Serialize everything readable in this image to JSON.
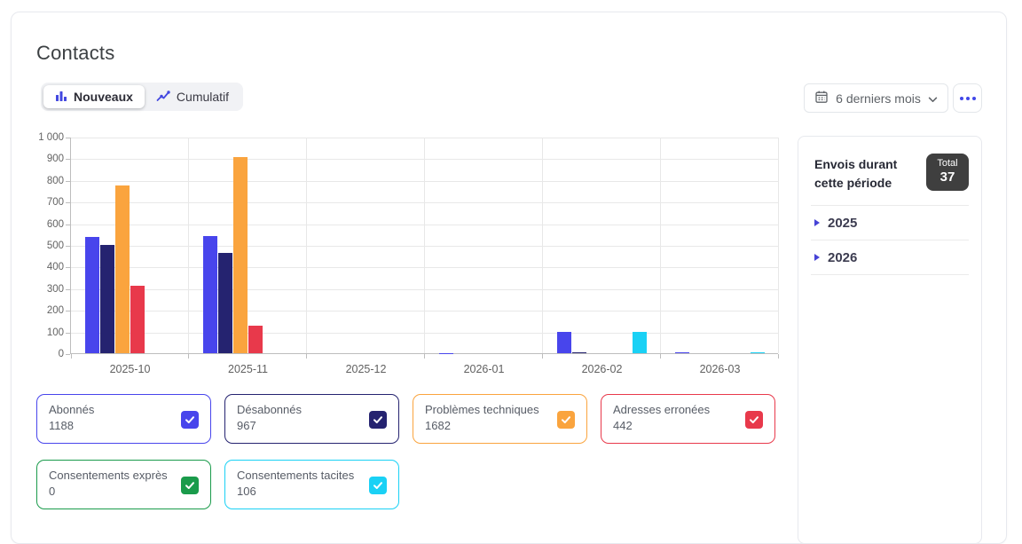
{
  "page": {
    "title": "Contacts"
  },
  "toolbar": {
    "views": [
      {
        "label": "Nouveaux",
        "icon": "bar-chart-icon",
        "active": true
      },
      {
        "label": "Cumulatif",
        "icon": "line-chart-icon",
        "active": false
      }
    ],
    "period": {
      "label": "6 derniers mois",
      "icon": "calendar-icon"
    },
    "more_icon": "ellipsis-icon"
  },
  "chart_data": {
    "type": "bar",
    "categories": [
      "2025-10",
      "2025-11",
      "2025-12",
      "2026-01",
      "2026-02",
      "2026-03"
    ],
    "series": [
      {
        "name": "Abonnés",
        "color": "#4845ec",
        "values": [
          537,
          543,
          0,
          2,
          100,
          6
        ],
        "total": "1188",
        "checked": true
      },
      {
        "name": "Désabonnés",
        "color": "#252370",
        "values": [
          501,
          462,
          0,
          0,
          4,
          0
        ],
        "total": "967",
        "checked": true
      },
      {
        "name": "Problèmes techniques",
        "color": "#faa43e",
        "values": [
          775,
          907,
          0,
          0,
          0,
          0
        ],
        "total": "1682",
        "checked": true
      },
      {
        "name": "Adresses erronées",
        "color": "#e8394b",
        "values": [
          313,
          129,
          0,
          0,
          0,
          0
        ],
        "total": "442",
        "checked": true
      },
      {
        "name": "Consentements exprès",
        "color": "#1a9b4b",
        "values": [
          0,
          0,
          0,
          0,
          0,
          0
        ],
        "total": "0",
        "checked": true
      },
      {
        "name": "Consentements tacites",
        "color": "#1ad1f5",
        "values": [
          0,
          0,
          0,
          0,
          100,
          6
        ],
        "total": "106",
        "checked": true
      }
    ],
    "title": "",
    "xlabel": "",
    "ylabel": "",
    "ylim": [
      0,
      1000
    ],
    "ytick_step": 100,
    "ytick_labels": [
      "0",
      "100",
      "200",
      "300",
      "400",
      "500",
      "600",
      "700",
      "800",
      "900",
      "1 000"
    ],
    "grid": true,
    "legend_position": "bottom-cards",
    "legend_rows": [
      4,
      2
    ]
  },
  "sidebar": {
    "title": "Envois durant cette période",
    "total_label": "Total",
    "total_value": "37",
    "years": [
      {
        "label": "2025"
      },
      {
        "label": "2026"
      }
    ]
  }
}
